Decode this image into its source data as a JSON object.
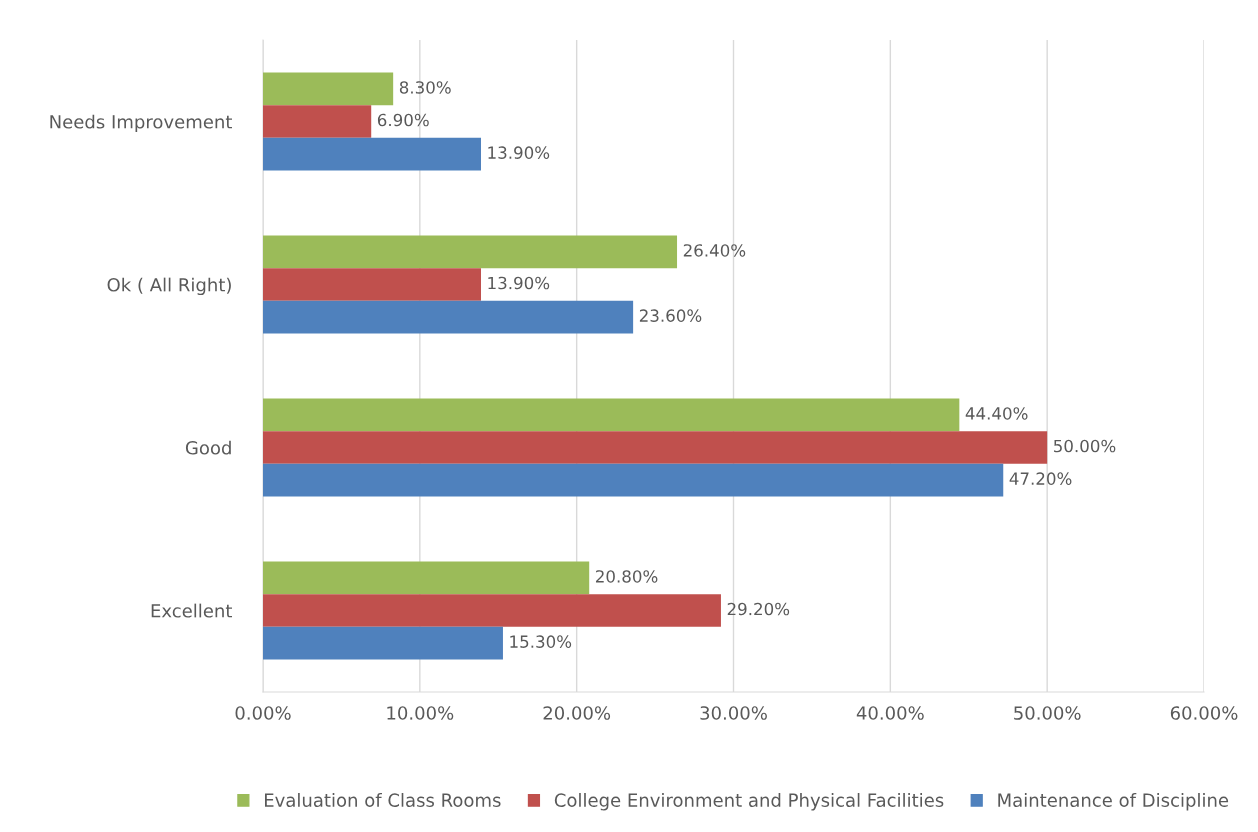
{
  "chart_data": {
    "type": "bar",
    "orientation": "horizontal",
    "categories": [
      "Needs Improvement",
      "Ok ( All Right)",
      "Good",
      "Excellent"
    ],
    "series": [
      {
        "name": "Evaluation of Class Rooms",
        "color": "#9bbb59",
        "values": [
          8.3,
          26.4,
          44.4,
          20.8
        ],
        "value_labels": [
          "8.30%",
          "26.40%",
          "44.40%",
          "20.80%"
        ]
      },
      {
        "name": "College Environment and Physical Facilities",
        "color": "#c0504d",
        "values": [
          6.9,
          13.9,
          50.0,
          29.2
        ],
        "value_labels": [
          "6.90%",
          "13.90%",
          "50.00%",
          "29.20%"
        ]
      },
      {
        "name": "Maintenance of Discipline",
        "color": "#4f81bd",
        "values": [
          13.9,
          23.6,
          47.2,
          15.3
        ],
        "value_labels": [
          "13.90%",
          "23.60%",
          "47.20%",
          "15.30%"
        ]
      }
    ],
    "xlim": [
      0,
      60
    ],
    "xticks": [
      {
        "value": 0,
        "label": "0.00%"
      },
      {
        "value": 10,
        "label": "10.00%"
      },
      {
        "value": 20,
        "label": "20.00%"
      },
      {
        "value": 30,
        "label": "30.00%"
      },
      {
        "value": 40,
        "label": "40.00%"
      },
      {
        "value": 50,
        "label": "50.00%"
      },
      {
        "value": 60,
        "label": "60.00%"
      }
    ],
    "grid": "x",
    "legend": "bottom"
  }
}
